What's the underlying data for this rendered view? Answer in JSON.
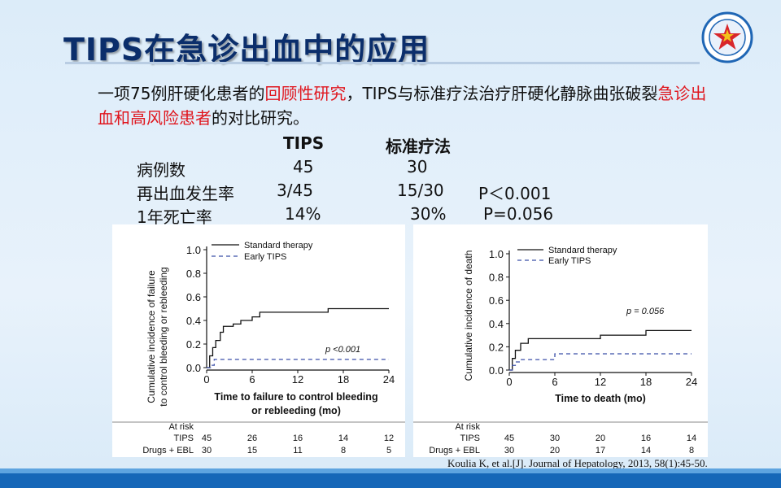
{
  "title": "TIPS在急诊出血中的应用",
  "intro": {
    "p1": "一项75例肝硬化患者的",
    "r1": "回顾性研究",
    "p2": "，TIPS与标准疗法治疗肝硬化静脉曲张破裂",
    "r2": "急诊出血和高风险患者",
    "p3": "的对比研究。"
  },
  "table": {
    "headers": [
      "TIPS",
      "标准疗法"
    ],
    "rows": [
      {
        "label": "病例数",
        "tips": "45",
        "std": "30",
        "p": ""
      },
      {
        "label": "再出血发生率",
        "tips": "3/45",
        "std": "15/30",
        "p": "P＜0.001"
      },
      {
        "label": "1年死亡率",
        "tips": "14%",
        "std": "30%",
        "p": "P=0.056"
      }
    ]
  },
  "chart_left": {
    "ylabel1": "Cumulative incidence of failure",
    "ylabel2": "to control bleeding or rebleeding",
    "xlabel1": "Time to failure to control bleeding",
    "xlabel2": "or rebleeding (mo)",
    "legend_std": "Standard therapy",
    "legend_tips": "Early TIPS",
    "pval": "p <0.001",
    "at_risk": "At risk",
    "row1_label": "TIPS",
    "row1": [
      "45",
      "26",
      "16",
      "14",
      "12"
    ],
    "row2_label": "Drugs + EBL",
    "row2": [
      "30",
      "15",
      "11",
      "8",
      "5"
    ]
  },
  "chart_right": {
    "ylabel": "Cumulative incidence of death",
    "xlabel": "Time to death (mo)",
    "legend_std": "Standard therapy",
    "legend_tips": "Early TIPS",
    "pval": "p = 0.056",
    "at_risk": "At risk",
    "row1_label": "TIPS",
    "row1": [
      "45",
      "30",
      "20",
      "16",
      "14"
    ],
    "row2_label": "Drugs + EBL",
    "row2": [
      "30",
      "20",
      "17",
      "14",
      "8"
    ]
  },
  "chart_data": [
    {
      "type": "line",
      "x_ticks": [
        "0",
        "6",
        "12",
        "18",
        "24"
      ],
      "y_ticks": [
        "0.0",
        "0.2",
        "0.4",
        "0.6",
        "0.8",
        "1.0"
      ],
      "xlim": [
        0,
        24
      ],
      "ylim": [
        0,
        1.0
      ],
      "series": [
        {
          "name": "Standard therapy",
          "x": [
            0,
            0.4,
            0.8,
            1.2,
            1.8,
            2.2,
            3.5,
            4.5,
            6,
            7,
            10,
            16,
            24
          ],
          "y": [
            0,
            0.1,
            0.17,
            0.23,
            0.3,
            0.35,
            0.37,
            0.4,
            0.43,
            0.47,
            0.47,
            0.5,
            0.5
          ]
        },
        {
          "name": "Early TIPS",
          "x": [
            0,
            0.5,
            1,
            24
          ],
          "y": [
            0,
            0.02,
            0.07,
            0.07
          ]
        }
      ]
    },
    {
      "type": "line",
      "x_ticks": [
        "0",
        "6",
        "12",
        "18",
        "24"
      ],
      "y_ticks": [
        "0.0",
        "0.2",
        "0.4",
        "0.6",
        "0.8",
        "1.0"
      ],
      "xlim": [
        0,
        24
      ],
      "ylim": [
        0,
        1.0
      ],
      "series": [
        {
          "name": "Standard therapy",
          "x": [
            0,
            0.4,
            0.8,
            1.5,
            2.5,
            12,
            18,
            24
          ],
          "y": [
            0,
            0.1,
            0.17,
            0.23,
            0.27,
            0.3,
            0.34,
            0.34
          ]
        },
        {
          "name": "Early TIPS",
          "x": [
            0,
            0.4,
            0.8,
            1.5,
            6,
            24
          ],
          "y": [
            0,
            0.04,
            0.07,
            0.09,
            0.14,
            0.14
          ]
        }
      ]
    }
  ],
  "citation": "Koulia K, et al.[J]. Journal of Hepatology, 2013, 58(1):45-50."
}
